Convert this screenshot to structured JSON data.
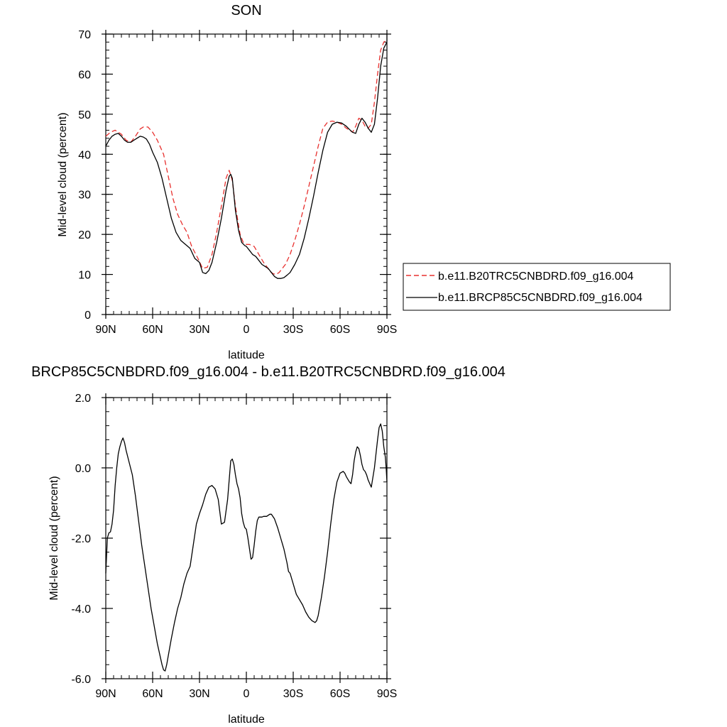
{
  "chart_data": [
    {
      "type": "line",
      "title": "SON",
      "xlabel": "latitude",
      "ylabel": "Mid-level cloud (percent)",
      "xlim": [
        90,
        -90
      ],
      "ylim": [
        0,
        70
      ],
      "x_ticks": [
        {
          "value": 90,
          "label": "90N"
        },
        {
          "value": 60,
          "label": "60N"
        },
        {
          "value": 30,
          "label": "30N"
        },
        {
          "value": 0,
          "label": "0"
        },
        {
          "value": -30,
          "label": "30S"
        },
        {
          "value": -60,
          "label": "60S"
        },
        {
          "value": -90,
          "label": "90S"
        }
      ],
      "y_ticks": [
        {
          "value": 0,
          "label": "0"
        },
        {
          "value": 10,
          "label": "10"
        },
        {
          "value": 20,
          "label": "20"
        },
        {
          "value": 30,
          "label": "30"
        },
        {
          "value": 40,
          "label": "40"
        },
        {
          "value": 50,
          "label": "50"
        },
        {
          "value": 60,
          "label": "60"
        },
        {
          "value": 70,
          "label": "70"
        }
      ],
      "y_minor_step": 2,
      "x_minor_step": 5,
      "grid": false,
      "legend": "right",
      "series": [
        {
          "name": "b.e11.B20TRC5CNBDRD.f09_g16.004",
          "color": "#e8302e",
          "dash": "dashed",
          "x": [
            90,
            87,
            84,
            80,
            77,
            74,
            71,
            68,
            66,
            63,
            60,
            57,
            53,
            50,
            47,
            44,
            41,
            38,
            35,
            33,
            31,
            28,
            25,
            22,
            19,
            16,
            13,
            11,
            9,
            7,
            4,
            2,
            0,
            -2,
            -5,
            -8,
            -11,
            -13,
            -15,
            -17,
            -19,
            -21,
            -23,
            -25,
            -28,
            -31,
            -34,
            -37,
            -40,
            -43,
            -46,
            -49,
            -52,
            -55,
            -58,
            -61,
            -64,
            -66,
            -68,
            -70,
            -72,
            -74,
            -76,
            -78,
            -80,
            -82,
            -84,
            -86,
            -88,
            -90
          ],
          "values": [
            44.5,
            45.5,
            46.0,
            45.0,
            43.5,
            43.0,
            44.5,
            46.3,
            46.8,
            46.8,
            45.5,
            43.5,
            40.0,
            34.5,
            29.0,
            25.0,
            22.5,
            20.5,
            17.0,
            15.5,
            14.0,
            11.5,
            11.8,
            15.0,
            20.5,
            27.0,
            34.0,
            36.0,
            33.5,
            27.0,
            20.0,
            18.0,
            17.5,
            17.5,
            17.0,
            15.0,
            13.0,
            12.0,
            10.8,
            10.2,
            10.0,
            10.5,
            11.5,
            12.5,
            15.0,
            18.5,
            22.5,
            27.0,
            32.0,
            37.0,
            42.0,
            46.5,
            48.0,
            48.3,
            48.0,
            47.5,
            46.5,
            46.0,
            45.5,
            47.0,
            49.0,
            48.5,
            47.0,
            46.5,
            47.5,
            53.0,
            60.0,
            66.0,
            68.0,
            68.5
          ]
        },
        {
          "name": "b.e11.BRCP85C5CNBDRD.f09_g16.004",
          "color": "#000000",
          "dash": "solid",
          "x": [
            90,
            88,
            86,
            84,
            82,
            80,
            78,
            76,
            74,
            72,
            70,
            68,
            66,
            64,
            62,
            60,
            57,
            54,
            51,
            48,
            45,
            42,
            39,
            36,
            33,
            30,
            28,
            26,
            24,
            22,
            19,
            16,
            13,
            11,
            10,
            9,
            8,
            7,
            5,
            3,
            1,
            0,
            -2,
            -4,
            -6,
            -8,
            -10,
            -12,
            -14,
            -16,
            -18,
            -20,
            -22,
            -24,
            -26,
            -28,
            -31,
            -34,
            -37,
            -40,
            -43,
            -46,
            -49,
            -52,
            -55,
            -58,
            -61,
            -64,
            -66,
            -68,
            -70,
            -72,
            -74,
            -76,
            -78,
            -80,
            -82,
            -84,
            -86,
            -88,
            -90
          ],
          "values": [
            42.0,
            43.5,
            44.5,
            45.0,
            45.2,
            44.5,
            43.5,
            43.0,
            43.0,
            43.5,
            44.0,
            44.5,
            44.3,
            43.8,
            42.5,
            40.5,
            38.0,
            34.0,
            29.0,
            24.0,
            20.5,
            18.5,
            17.5,
            16.5,
            14.0,
            13.0,
            10.5,
            10.2,
            11.0,
            13.0,
            18.0,
            24.0,
            31.0,
            34.5,
            35.0,
            34.0,
            30.0,
            26.0,
            21.0,
            18.0,
            17.2,
            17.0,
            16.0,
            15.0,
            14.5,
            13.5,
            12.5,
            12.0,
            11.5,
            10.5,
            9.5,
            9.0,
            9.0,
            9.2,
            9.8,
            10.5,
            12.5,
            15.0,
            19.0,
            24.0,
            29.5,
            35.5,
            41.0,
            45.5,
            47.5,
            48.0,
            47.8,
            47.0,
            46.2,
            45.5,
            45.2,
            47.5,
            49.0,
            48.0,
            46.5,
            45.5,
            47.5,
            54.0,
            62.0,
            66.5,
            68.0
          ]
        }
      ]
    },
    {
      "type": "line",
      "title": "BRCP85C5CNBDRD.f09_g16.004 - b.e11.B20TRC5CNBDRD.f09_g16.004",
      "xlabel": "latitude",
      "ylabel": "Mid-level cloud (percent)",
      "xlim": [
        90,
        -90
      ],
      "ylim": [
        -6,
        2
      ],
      "x_ticks": [
        {
          "value": 90,
          "label": "90N"
        },
        {
          "value": 60,
          "label": "60N"
        },
        {
          "value": 30,
          "label": "30N"
        },
        {
          "value": 0,
          "label": "0"
        },
        {
          "value": -30,
          "label": "30S"
        },
        {
          "value": -60,
          "label": "60S"
        },
        {
          "value": -90,
          "label": "90S"
        }
      ],
      "y_ticks": [
        {
          "value": -6,
          "label": "-6.0"
        },
        {
          "value": -4,
          "label": "-4.0"
        },
        {
          "value": -2,
          "label": "-2.0"
        },
        {
          "value": 0,
          "label": "0.0"
        },
        {
          "value": 2,
          "label": "2.0"
        }
      ],
      "y_minor_step": 0.4,
      "x_minor_step": 5,
      "grid": false,
      "series": [
        {
          "color": "#000000",
          "dash": "solid",
          "x": [
            90,
            89.5,
            89,
            88,
            87,
            86,
            85,
            84,
            83,
            82,
            81,
            80,
            79,
            78,
            77,
            75,
            73,
            71,
            69,
            67,
            65,
            63,
            61,
            59,
            57,
            55,
            54,
            53,
            52,
            51,
            50,
            49,
            48,
            46,
            44,
            42,
            40,
            38,
            36,
            34,
            32,
            30,
            28,
            26,
            24,
            22,
            20,
            18,
            16,
            14,
            12,
            11,
            10,
            9,
            8,
            7,
            6,
            5,
            4,
            3,
            2,
            1,
            0,
            -1,
            -2,
            -3,
            -4,
            -5,
            -6,
            -7,
            -8,
            -9,
            -10,
            -11,
            -12,
            -13,
            -14,
            -15,
            -16,
            -18,
            -20,
            -22,
            -24,
            -26,
            -27,
            -28,
            -30,
            -32,
            -34,
            -36,
            -38,
            -40,
            -42,
            -44,
            -45,
            -46,
            -47,
            -48,
            -49,
            -50,
            -52,
            -54,
            -56,
            -58,
            -60,
            -62,
            -63,
            -64,
            -66,
            -67,
            -68,
            -69,
            -70,
            -71,
            -72,
            -73,
            -74,
            -75,
            -76,
            -77,
            -78,
            -79,
            -80,
            -82,
            -83,
            -84,
            -85,
            -86,
            -87,
            -88,
            -89,
            -89.5,
            -90
          ],
          "values": [
            -3.0,
            -2.5,
            -2.0,
            -1.85,
            -1.82,
            -1.6,
            -1.2,
            -0.5,
            0.0,
            0.4,
            0.6,
            0.75,
            0.85,
            0.72,
            0.5,
            0.15,
            -0.2,
            -0.8,
            -1.5,
            -2.2,
            -2.8,
            -3.4,
            -4.0,
            -4.5,
            -5.0,
            -5.4,
            -5.6,
            -5.75,
            -5.78,
            -5.6,
            -5.35,
            -5.1,
            -4.85,
            -4.4,
            -4.0,
            -3.7,
            -3.3,
            -3.0,
            -2.8,
            -2.2,
            -1.6,
            -1.3,
            -1.05,
            -0.75,
            -0.55,
            -0.5,
            -0.6,
            -0.9,
            -1.6,
            -1.55,
            -0.9,
            -0.35,
            0.2,
            0.25,
            0.1,
            -0.2,
            -0.45,
            -0.6,
            -0.85,
            -1.3,
            -1.55,
            -1.7,
            -1.75,
            -2.0,
            -2.3,
            -2.6,
            -2.55,
            -2.2,
            -1.8,
            -1.5,
            -1.4,
            -1.4,
            -1.4,
            -1.38,
            -1.38,
            -1.38,
            -1.35,
            -1.32,
            -1.32,
            -1.45,
            -1.7,
            -2.0,
            -2.3,
            -2.7,
            -2.95,
            -3.0,
            -3.3,
            -3.6,
            -3.75,
            -3.9,
            -4.1,
            -4.25,
            -4.35,
            -4.4,
            -4.35,
            -4.2,
            -3.95,
            -3.7,
            -3.4,
            -3.1,
            -2.4,
            -1.6,
            -0.9,
            -0.4,
            -0.15,
            -0.1,
            -0.15,
            -0.25,
            -0.4,
            -0.45,
            -0.2,
            0.2,
            0.45,
            0.6,
            0.55,
            0.35,
            0.1,
            -0.05,
            -0.1,
            -0.2,
            -0.35,
            -0.45,
            -0.55,
            0.0,
            0.4,
            0.8,
            1.15,
            1.25,
            1.05,
            0.6,
            0.3,
            0.0,
            -0.4
          ]
        }
      ]
    }
  ]
}
